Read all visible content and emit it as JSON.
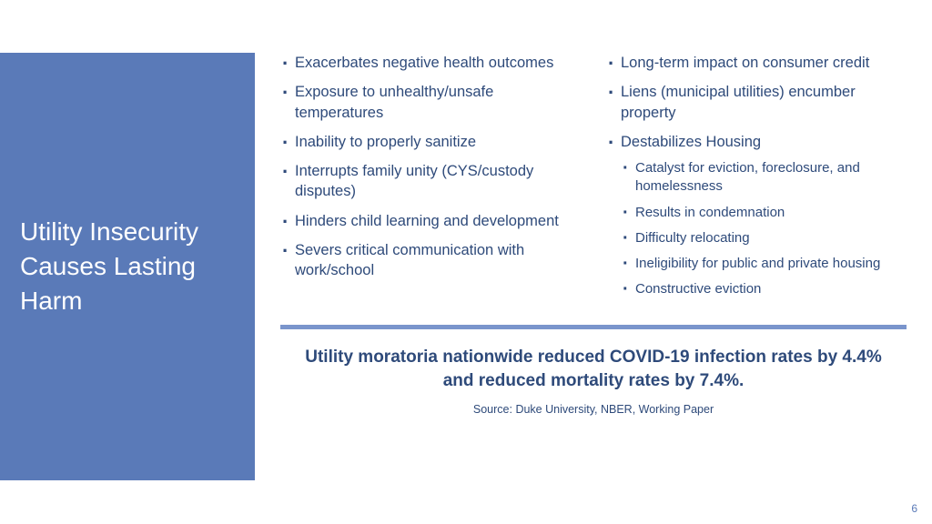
{
  "sidebar": {
    "title": "Utility Insecurity Causes Lasting Harm"
  },
  "left_column": {
    "items": [
      "Exacerbates negative health outcomes",
      "Exposure to unhealthy/unsafe temperatures",
      "Inability to properly sanitize",
      "Interrupts family unity (CYS/custody disputes)",
      "Hinders child learning and development",
      "Severs critical communication with work/school"
    ]
  },
  "right_column": {
    "items": [
      {
        "text": "Long-term impact on consumer credit"
      },
      {
        "text": "Liens (municipal utilities) encumber property"
      },
      {
        "text": "Destabilizes Housing",
        "sub": [
          "Catalyst for eviction, foreclosure, and homelessness",
          "Results in condemnation",
          "Difficulty relocating",
          "Ineligibility for public and private housing",
          "Constructive eviction"
        ]
      }
    ]
  },
  "callout": "Utility moratoria nationwide reduced COVID-19 infection rates by 4.4% and reduced mortality rates by 7.4%.",
  "source": "Source: Duke University, NBER, Working Paper",
  "page_number": "6",
  "colors": {
    "sidebar_bg": "#5a7ab8",
    "text_primary": "#2e4a7a",
    "divider": "#7a95cc",
    "title_text": "#ffffff"
  }
}
